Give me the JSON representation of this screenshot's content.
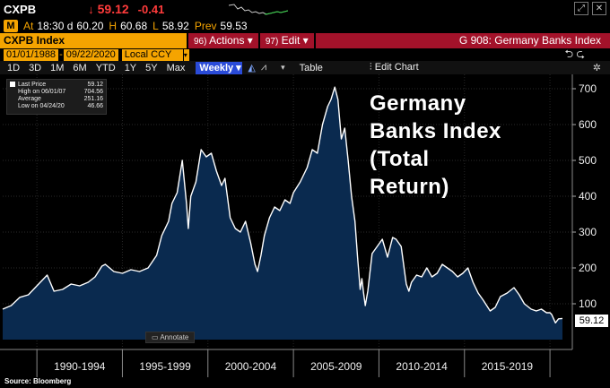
{
  "header": {
    "ticker": "CXPB",
    "arrow": "↓",
    "price": "59.12",
    "change": "-0.41",
    "at_label": "At",
    "time": "18:30 d",
    "open": "60.20",
    "high_label": "H",
    "high": "60.68",
    "low_label": "L",
    "low": "58.92",
    "prev_label": "Prev",
    "prev": "59.53",
    "badge": "M"
  },
  "command_bar": {
    "security": "CXPB Index",
    "actions_num": "96)",
    "actions": "Actions ▾",
    "edit_num": "97)",
    "edit": "Edit ▾",
    "title": "G 908: Germany Banks Index"
  },
  "date_bar": {
    "start": "01/01/1988",
    "end": "09/22/2020",
    "currency": "Local CCY",
    "nav": "⮌  ⮎"
  },
  "toolbar": {
    "ranges": [
      "1D",
      "3D",
      "1M",
      "6M",
      "YTD",
      "1Y",
      "5Y",
      "Max"
    ],
    "frequency": "Weekly ▾",
    "table": "Table",
    "edit_chart": "Edit Chart"
  },
  "legend": {
    "last_price_label": "Last Price",
    "last_price": "59.12",
    "high_label": "High on 06/01/07",
    "high": "704.56",
    "average_label": "Average",
    "average": "251.16",
    "low_label": "Low on 04/24/20",
    "low": "46.66"
  },
  "annotate": "Annotate",
  "overlay_title": [
    "Germany",
    "Banks Index",
    "(Total",
    "Return)"
  ],
  "source": "Source: Bloomberg",
  "colors": {
    "orange": "#f5a400",
    "red_bar": "#a3122a",
    "fill": "#0a2a4f",
    "line": "#ffffff",
    "down": "#ff3b3b"
  },
  "chart_data": {
    "type": "area",
    "ylim": [
      0,
      720
    ],
    "yticks": [
      100,
      200,
      300,
      400,
      500,
      600,
      700
    ],
    "x_range": [
      1988.0,
      2020.73
    ],
    "x_groups": [
      "1990-1994",
      "1995-1999",
      "2000-2004",
      "2005-2009",
      "2010-2014",
      "2015-2019"
    ],
    "last_value_label": "59.12",
    "series": [
      {
        "x": [
          1988.0,
          1988.5,
          1989.0,
          1989.5,
          1990.0,
          1990.6,
          1991.0,
          1991.5,
          1992.0,
          1992.5,
          1993.0,
          1993.4,
          1993.8,
          1994.0,
          1994.5,
          1995.0,
          1995.5,
          1996.0,
          1996.5,
          1997.0,
          1997.3,
          1997.7,
          1997.9,
          1998.2,
          1998.5,
          1998.75,
          1998.85,
          1999.0,
          1999.3,
          1999.6,
          1999.9,
          2000.2,
          2000.5,
          2000.8,
          2001.0,
          2001.3,
          2001.6,
          2001.9,
          2002.2,
          2002.5,
          2002.75,
          2002.9,
          2003.1,
          2003.3,
          2003.6,
          2003.9,
          2004.2,
          2004.5,
          2004.8,
          2005.0,
          2005.4,
          2005.8,
          2006.1,
          2006.4,
          2006.7,
          2007.0,
          2007.2,
          2007.42,
          2007.6,
          2007.8,
          2008.0,
          2008.2,
          2008.4,
          2008.6,
          2008.75,
          2008.9,
          2009.0,
          2009.1,
          2009.2,
          2009.35,
          2009.6,
          2009.9,
          2010.2,
          2010.5,
          2010.8,
          2011.0,
          2011.3,
          2011.6,
          2011.75,
          2011.9,
          2012.2,
          2012.5,
          2012.8,
          2013.1,
          2013.4,
          2013.7,
          2014.0,
          2014.3,
          2014.6,
          2014.9,
          2015.2,
          2015.5,
          2015.8,
          2016.1,
          2016.5,
          2016.8,
          2017.1,
          2017.5,
          2017.9,
          2018.2,
          2018.5,
          2018.9,
          2019.2,
          2019.5,
          2019.8,
          2020.0,
          2020.1,
          2020.32,
          2020.5,
          2020.73
        ],
        "y": [
          85,
          95,
          118,
          125,
          150,
          180,
          135,
          140,
          155,
          150,
          160,
          175,
          205,
          210,
          190,
          185,
          195,
          190,
          200,
          235,
          290,
          330,
          380,
          410,
          500,
          380,
          310,
          400,
          440,
          530,
          510,
          520,
          470,
          430,
          450,
          340,
          310,
          300,
          330,
          270,
          210,
          190,
          235,
          290,
          340,
          370,
          360,
          390,
          380,
          410,
          440,
          480,
          530,
          520,
          600,
          650,
          670,
          704.56,
          670,
          560,
          590,
          500,
          400,
          330,
          230,
          140,
          170,
          130,
          95,
          135,
          240,
          260,
          280,
          230,
          285,
          280,
          260,
          155,
          135,
          160,
          180,
          175,
          200,
          175,
          185,
          210,
          200,
          190,
          175,
          185,
          200,
          160,
          130,
          110,
          80,
          90,
          120,
          130,
          145,
          125,
          100,
          85,
          80,
          85,
          75,
          75,
          70,
          46.66,
          58,
          59.12
        ]
      }
    ]
  }
}
